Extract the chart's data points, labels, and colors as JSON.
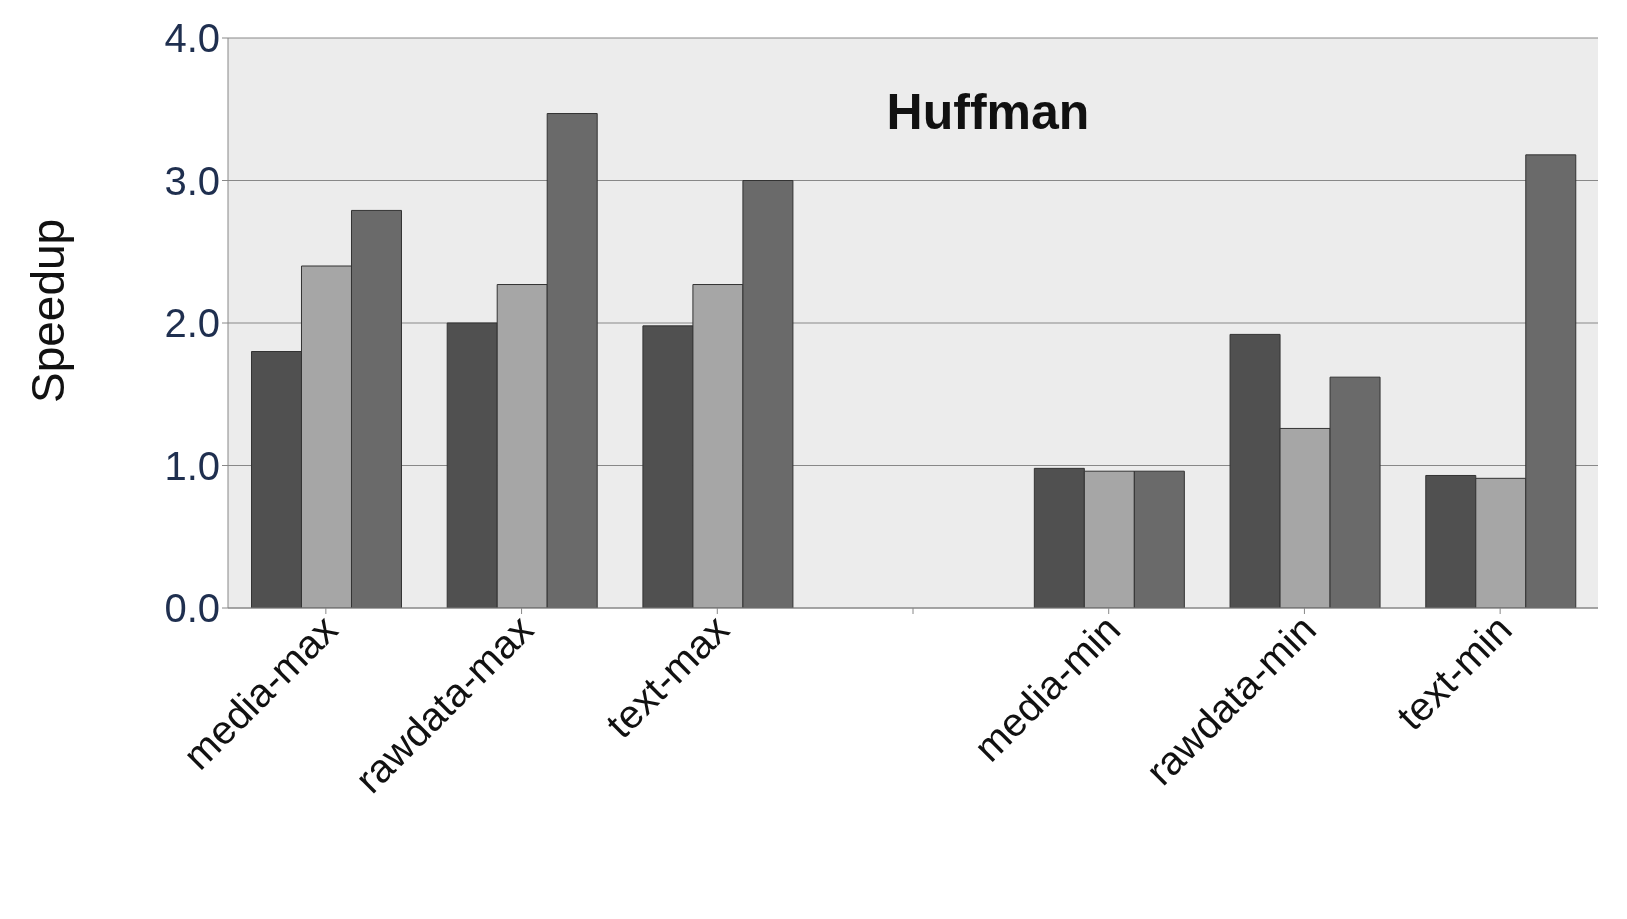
{
  "chart_data": {
    "type": "bar",
    "title": "Huffman",
    "ylabel": "Speedup",
    "categories": [
      "media-max",
      "rawdata-max",
      "text-max",
      null,
      "media-min",
      "rawdata-min",
      "text-min"
    ],
    "series": [
      {
        "color": "#505050",
        "values": [
          1.8,
          2.0,
          1.98,
          null,
          0.98,
          1.92,
          0.93
        ]
      },
      {
        "color": "#a6a6a6",
        "values": [
          2.4,
          2.27,
          2.27,
          null,
          0.96,
          1.26,
          0.91
        ]
      },
      {
        "color": "#6a6a6a",
        "values": [
          2.79,
          3.47,
          3.0,
          null,
          0.96,
          1.62,
          3.18
        ]
      }
    ],
    "ylim": [
      0,
      4
    ],
    "yticks": [
      {
        "value": 0,
        "label": "0.0"
      },
      {
        "value": 1,
        "label": "1.0"
      },
      {
        "value": 2,
        "label": "2.0"
      },
      {
        "value": 3,
        "label": "3.0"
      },
      {
        "value": 4,
        "label": "4.0"
      }
    ],
    "grid": "y",
    "legend": false
  }
}
